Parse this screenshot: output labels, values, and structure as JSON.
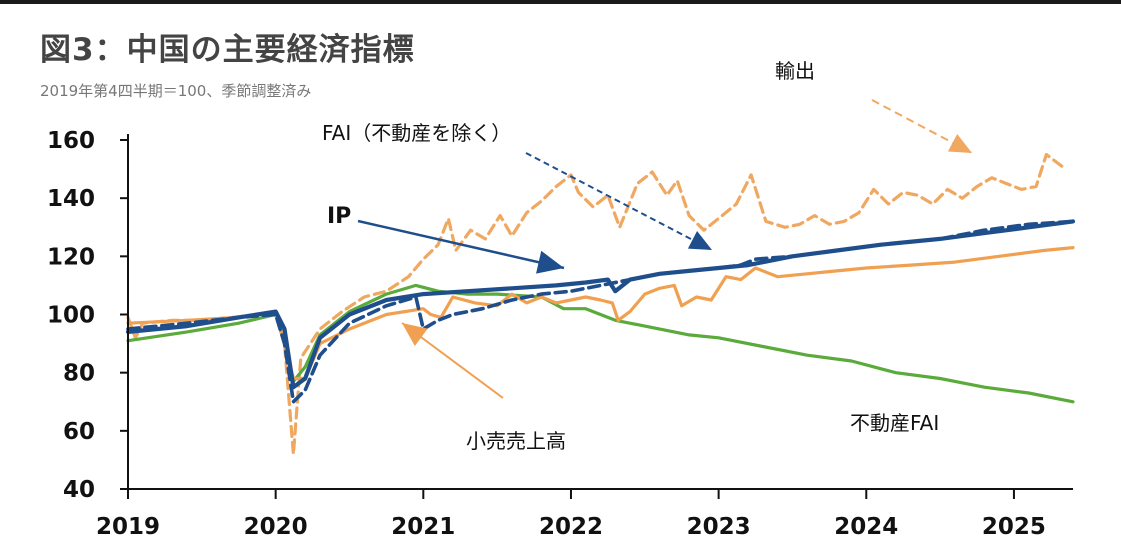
{
  "title": "図3：中国の主要経済指標",
  "subtitle": "2019年第4四半期＝100、季節調整済み",
  "colors": {
    "ip": "#1f4e8c",
    "fai_ex_property": "#1f4e8c",
    "exports": "#f0a860",
    "retail": "#f0a050",
    "property_fai": "#5aaa3c",
    "axis": "#111111"
  },
  "chart_data": {
    "type": "line",
    "title": "図3：中国の主要経済指標",
    "subtitle": "2019年第4四半期＝100、季節調整済み",
    "xlabel": "",
    "ylabel": "",
    "xlim": [
      2019.0,
      2025.4
    ],
    "ylim": [
      40,
      160
    ],
    "yticks": [
      40,
      60,
      80,
      100,
      120,
      140,
      160
    ],
    "xticks": [
      2019,
      2020,
      2021,
      2022,
      2023,
      2024,
      2025
    ],
    "xtick_labels": [
      "2019",
      "2020",
      "2021",
      "2022",
      "2023",
      "2024",
      "2025"
    ],
    "grid": false,
    "series": [
      {
        "key": "exports",
        "name": "輸出",
        "style": "dashed",
        "points": [
          [
            2019.0,
            99
          ],
          [
            2019.05,
            92
          ],
          [
            2019.1,
            97
          ],
          [
            2019.3,
            98
          ],
          [
            2019.5,
            98
          ],
          [
            2019.7,
            99
          ],
          [
            2019.9,
            100
          ],
          [
            2020.0,
            101
          ],
          [
            2020.06,
            90
          ],
          [
            2020.12,
            52
          ],
          [
            2020.17,
            85
          ],
          [
            2020.3,
            95
          ],
          [
            2020.45,
            101
          ],
          [
            2020.6,
            106
          ],
          [
            2020.75,
            108
          ],
          [
            2020.9,
            113
          ],
          [
            2021.0,
            119
          ],
          [
            2021.1,
            124
          ],
          [
            2021.17,
            133
          ],
          [
            2021.22,
            122
          ],
          [
            2021.32,
            129
          ],
          [
            2021.42,
            126
          ],
          [
            2021.52,
            134
          ],
          [
            2021.6,
            127
          ],
          [
            2021.7,
            135
          ],
          [
            2021.8,
            139
          ],
          [
            2021.9,
            144
          ],
          [
            2022.0,
            148
          ],
          [
            2022.05,
            142
          ],
          [
            2022.15,
            137
          ],
          [
            2022.25,
            141
          ],
          [
            2022.33,
            130
          ],
          [
            2022.45,
            145
          ],
          [
            2022.55,
            149
          ],
          [
            2022.65,
            141
          ],
          [
            2022.72,
            146
          ],
          [
            2022.8,
            134
          ],
          [
            2022.9,
            129
          ],
          [
            2023.0,
            133
          ],
          [
            2023.12,
            138
          ],
          [
            2023.22,
            148
          ],
          [
            2023.32,
            132
          ],
          [
            2023.45,
            130
          ],
          [
            2023.55,
            131
          ],
          [
            2023.65,
            134
          ],
          [
            2023.75,
            131
          ],
          [
            2023.85,
            132
          ],
          [
            2023.95,
            135
          ],
          [
            2024.05,
            143
          ],
          [
            2024.15,
            138
          ],
          [
            2024.25,
            142
          ],
          [
            2024.35,
            141
          ],
          [
            2024.45,
            138
          ],
          [
            2024.55,
            143
          ],
          [
            2024.65,
            140
          ],
          [
            2024.75,
            144
          ],
          [
            2024.85,
            147
          ],
          [
            2024.95,
            145
          ],
          [
            2025.05,
            143
          ],
          [
            2025.15,
            144
          ],
          [
            2025.22,
            155
          ],
          [
            2025.35,
            150
          ]
        ]
      },
      {
        "key": "ip",
        "name": "IP",
        "style": "solid",
        "points": [
          [
            2019.0,
            94
          ],
          [
            2019.4,
            96
          ],
          [
            2019.75,
            99
          ],
          [
            2020.0,
            101
          ],
          [
            2020.06,
            95
          ],
          [
            2020.12,
            75
          ],
          [
            2020.2,
            78
          ],
          [
            2020.3,
            92
          ],
          [
            2020.5,
            100
          ],
          [
            2020.75,
            105
          ],
          [
            2021.0,
            107
          ],
          [
            2021.3,
            108
          ],
          [
            2021.6,
            109
          ],
          [
            2021.9,
            110
          ],
          [
            2022.1,
            111
          ],
          [
            2022.25,
            112
          ],
          [
            2022.3,
            108
          ],
          [
            2022.4,
            112
          ],
          [
            2022.6,
            114
          ],
          [
            2022.8,
            115
          ],
          [
            2023.0,
            116
          ],
          [
            2023.2,
            117
          ],
          [
            2023.5,
            120
          ],
          [
            2023.8,
            122
          ],
          [
            2024.1,
            124
          ],
          [
            2024.5,
            126
          ],
          [
            2024.8,
            128
          ],
          [
            2025.1,
            130
          ],
          [
            2025.4,
            132
          ]
        ]
      },
      {
        "key": "fai_ex_property",
        "name": "FAI（不動産を除く）",
        "style": "dashed",
        "points": [
          [
            2019.0,
            95
          ],
          [
            2019.4,
            97
          ],
          [
            2019.75,
            99
          ],
          [
            2020.0,
            100
          ],
          [
            2020.06,
            90
          ],
          [
            2020.12,
            70
          ],
          [
            2020.2,
            74
          ],
          [
            2020.3,
            86
          ],
          [
            2020.5,
            97
          ],
          [
            2020.75,
            103
          ],
          [
            2020.95,
            106
          ],
          [
            2021.0,
            95
          ],
          [
            2021.1,
            98
          ],
          [
            2021.2,
            100
          ],
          [
            2021.4,
            102
          ],
          [
            2021.6,
            105
          ],
          [
            2021.8,
            107
          ],
          [
            2022.0,
            108
          ],
          [
            2022.2,
            110
          ],
          [
            2022.4,
            112
          ],
          [
            2022.6,
            114
          ],
          [
            2022.8,
            115
          ],
          [
            2023.0,
            116
          ],
          [
            2023.15,
            117
          ],
          [
            2023.25,
            119
          ],
          [
            2023.5,
            120
          ],
          [
            2023.8,
            122
          ],
          [
            2024.1,
            124
          ],
          [
            2024.5,
            126
          ],
          [
            2024.8,
            129
          ],
          [
            2025.1,
            131
          ],
          [
            2025.4,
            132
          ]
        ]
      },
      {
        "key": "retail",
        "name": "小売売上高",
        "style": "solid",
        "points": [
          [
            2019.0,
            97
          ],
          [
            2019.4,
            98
          ],
          [
            2019.75,
            99
          ],
          [
            2020.0,
            101
          ],
          [
            2020.06,
            90
          ],
          [
            2020.12,
            78
          ],
          [
            2020.2,
            78
          ],
          [
            2020.3,
            90
          ],
          [
            2020.5,
            95
          ],
          [
            2020.75,
            100
          ],
          [
            2021.0,
            102
          ],
          [
            2021.05,
            100
          ],
          [
            2021.12,
            99
          ],
          [
            2021.2,
            106
          ],
          [
            2021.35,
            104
          ],
          [
            2021.5,
            103
          ],
          [
            2021.6,
            107
          ],
          [
            2021.7,
            104
          ],
          [
            2021.8,
            106
          ],
          [
            2021.9,
            104
          ],
          [
            2022.0,
            105
          ],
          [
            2022.1,
            106
          ],
          [
            2022.2,
            105
          ],
          [
            2022.28,
            104
          ],
          [
            2022.32,
            98
          ],
          [
            2022.4,
            101
          ],
          [
            2022.5,
            107
          ],
          [
            2022.6,
            109
          ],
          [
            2022.7,
            110
          ],
          [
            2022.75,
            103
          ],
          [
            2022.85,
            106
          ],
          [
            2022.95,
            105
          ],
          [
            2023.05,
            113
          ],
          [
            2023.15,
            112
          ],
          [
            2023.25,
            116
          ],
          [
            2023.4,
            113
          ],
          [
            2023.6,
            114
          ],
          [
            2023.8,
            115
          ],
          [
            2024.0,
            116
          ],
          [
            2024.3,
            117
          ],
          [
            2024.6,
            118
          ],
          [
            2024.9,
            120
          ],
          [
            2025.2,
            122
          ],
          [
            2025.4,
            123
          ]
        ]
      },
      {
        "key": "property_fai",
        "name": "不動産FAI",
        "style": "solid",
        "points": [
          [
            2019.0,
            91
          ],
          [
            2019.4,
            94
          ],
          [
            2019.75,
            97
          ],
          [
            2020.0,
            100
          ],
          [
            2020.06,
            90
          ],
          [
            2020.12,
            77
          ],
          [
            2020.2,
            82
          ],
          [
            2020.3,
            93
          ],
          [
            2020.5,
            101
          ],
          [
            2020.75,
            107
          ],
          [
            2020.95,
            110
          ],
          [
            2021.1,
            108
          ],
          [
            2021.3,
            107
          ],
          [
            2021.5,
            107
          ],
          [
            2021.8,
            106
          ],
          [
            2021.95,
            102
          ],
          [
            2022.1,
            102
          ],
          [
            2022.2,
            100
          ],
          [
            2022.3,
            98
          ],
          [
            2022.5,
            96
          ],
          [
            2022.8,
            93
          ],
          [
            2023.0,
            92
          ],
          [
            2023.3,
            89
          ],
          [
            2023.6,
            86
          ],
          [
            2023.9,
            84
          ],
          [
            2024.2,
            80
          ],
          [
            2024.5,
            78
          ],
          [
            2024.8,
            75
          ],
          [
            2025.1,
            73
          ],
          [
            2025.4,
            70
          ]
        ]
      }
    ],
    "annotations": [
      {
        "text": "輸出",
        "series": "exports"
      },
      {
        "text": "FAI（不動産を除く）",
        "series": "fai_ex_property"
      },
      {
        "text": "IP",
        "series": "ip"
      },
      {
        "text": "小売売上高",
        "series": "retail"
      },
      {
        "text": "不動産FAI",
        "series": "property_fai"
      }
    ]
  }
}
